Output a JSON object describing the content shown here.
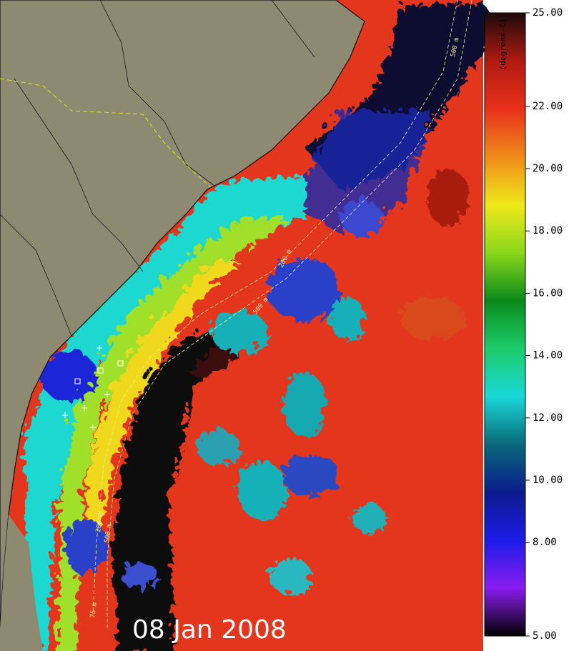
{
  "date_label": "08 Jan 2008",
  "colorbar": {
    "label": "(degrees-C)",
    "lim": [
      5,
      25
    ],
    "ticks": [
      {
        "value": 25,
        "label": "25.00"
      },
      {
        "value": 22,
        "label": "22.00"
      },
      {
        "value": 20,
        "label": "20.00"
      },
      {
        "value": 18,
        "label": "18.00"
      },
      {
        "value": 16,
        "label": "16.00"
      },
      {
        "value": 14,
        "label": "14.00"
      },
      {
        "value": 12,
        "label": "12.00"
      },
      {
        "value": 10,
        "label": "10.00"
      },
      {
        "value": 8,
        "label": "8.00"
      },
      {
        "value": 5,
        "label": "5.00"
      }
    ],
    "colors": [
      "#000000",
      "#8a1cf0",
      "#1c1ce8",
      "#0a1c8c",
      "#0a6a7a",
      "#1ad8d8",
      "#1ccc6a",
      "#0a8a1a",
      "#8ad81a",
      "#f0e81a",
      "#f08a1a",
      "#e8301a",
      "#b01a10",
      "#1a0a0a"
    ]
  },
  "isobath_labels": [
    "200 m",
    "500 m",
    "75 m",
    "200 m",
    "500 m",
    "500 m"
  ]
}
